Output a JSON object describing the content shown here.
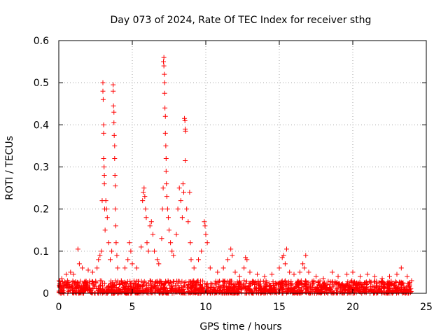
{
  "chart_data": {
    "type": "scatter",
    "title": "Day 073 of 2024, Rate Of TEC Index for receiver sthg",
    "xlabel": "GPS time / hours",
    "ylabel": "ROTI / TECUs",
    "xlim": [
      0,
      25
    ],
    "ylim": [
      0,
      0.6
    ],
    "xticks": [
      0,
      5,
      10,
      15,
      20,
      25
    ],
    "yticks": [
      0,
      0.1,
      0.2,
      0.3,
      0.4,
      0.5,
      0.6
    ],
    "ytick_labels": [
      "0",
      "0.1",
      "0.2",
      "0.3",
      "0.4",
      "0.5",
      "0.6"
    ],
    "grid": true,
    "marker": "+",
    "color": "#ff0000",
    "x_data_range": [
      0,
      24
    ],
    "baseline_level": [
      0.0,
      0.03
    ],
    "series": [
      {
        "name": "ROTI",
        "points": [
          [
            0.2,
            0.035
          ],
          [
            0.5,
            0.045
          ],
          [
            0.8,
            0.05
          ],
          [
            1.0,
            0.045
          ],
          [
            1.3,
            0.105
          ],
          [
            1.4,
            0.07
          ],
          [
            1.6,
            0.06
          ],
          [
            2.0,
            0.055
          ],
          [
            2.3,
            0.05
          ],
          [
            2.6,
            0.06
          ],
          [
            2.7,
            0.08
          ],
          [
            2.8,
            0.09
          ],
          [
            2.9,
            0.1
          ],
          [
            2.95,
            0.22
          ],
          [
            3.0,
            0.5
          ],
          [
            3.0,
            0.48
          ],
          [
            3.02,
            0.46
          ],
          [
            3.05,
            0.4
          ],
          [
            3.05,
            0.38
          ],
          [
            3.05,
            0.32
          ],
          [
            3.08,
            0.3
          ],
          [
            3.1,
            0.28
          ],
          [
            3.1,
            0.26
          ],
          [
            3.12,
            0.2
          ],
          [
            3.15,
            0.15
          ],
          [
            3.2,
            0.22
          ],
          [
            3.25,
            0.2
          ],
          [
            3.3,
            0.18
          ],
          [
            3.4,
            0.12
          ],
          [
            3.5,
            0.08
          ],
          [
            3.6,
            0.1
          ],
          [
            3.7,
            0.495
          ],
          [
            3.7,
            0.48
          ],
          [
            3.72,
            0.445
          ],
          [
            3.75,
            0.43
          ],
          [
            3.75,
            0.405
          ],
          [
            3.77,
            0.375
          ],
          [
            3.8,
            0.35
          ],
          [
            3.8,
            0.32
          ],
          [
            3.82,
            0.28
          ],
          [
            3.85,
            0.255
          ],
          [
            3.85,
            0.2
          ],
          [
            3.88,
            0.16
          ],
          [
            3.9,
            0.12
          ],
          [
            3.95,
            0.09
          ],
          [
            4.0,
            0.06
          ],
          [
            4.5,
            0.06
          ],
          [
            4.7,
            0.08
          ],
          [
            4.8,
            0.12
          ],
          [
            4.9,
            0.1
          ],
          [
            5.0,
            0.07
          ],
          [
            5.3,
            0.06
          ],
          [
            5.6,
            0.11
          ],
          [
            5.7,
            0.22
          ],
          [
            5.75,
            0.24
          ],
          [
            5.8,
            0.25
          ],
          [
            5.85,
            0.23
          ],
          [
            5.9,
            0.2
          ],
          [
            5.95,
            0.18
          ],
          [
            6.0,
            0.12
          ],
          [
            6.1,
            0.1
          ],
          [
            6.2,
            0.16
          ],
          [
            6.3,
            0.17
          ],
          [
            6.4,
            0.14
          ],
          [
            6.5,
            0.1
          ],
          [
            6.7,
            0.08
          ],
          [
            6.8,
            0.07
          ],
          [
            7.0,
            0.13
          ],
          [
            7.05,
            0.2
          ],
          [
            7.1,
            0.25
          ],
          [
            7.12,
            0.55
          ],
          [
            7.15,
            0.56
          ],
          [
            7.15,
            0.54
          ],
          [
            7.18,
            0.52
          ],
          [
            7.2,
            0.5
          ],
          [
            7.2,
            0.475
          ],
          [
            7.22,
            0.44
          ],
          [
            7.25,
            0.42
          ],
          [
            7.25,
            0.38
          ],
          [
            7.28,
            0.35
          ],
          [
            7.3,
            0.32
          ],
          [
            7.3,
            0.29
          ],
          [
            7.32,
            0.26
          ],
          [
            7.35,
            0.23
          ],
          [
            7.4,
            0.2
          ],
          [
            7.45,
            0.18
          ],
          [
            7.5,
            0.15
          ],
          [
            7.6,
            0.12
          ],
          [
            7.7,
            0.1
          ],
          [
            7.8,
            0.09
          ],
          [
            8.0,
            0.14
          ],
          [
            8.1,
            0.2
          ],
          [
            8.2,
            0.25
          ],
          [
            8.3,
            0.22
          ],
          [
            8.4,
            0.18
          ],
          [
            8.45,
            0.26
          ],
          [
            8.5,
            0.24
          ],
          [
            8.55,
            0.415
          ],
          [
            8.58,
            0.41
          ],
          [
            8.6,
            0.39
          ],
          [
            8.62,
            0.385
          ],
          [
            8.6,
            0.315
          ],
          [
            8.7,
            0.2
          ],
          [
            8.8,
            0.17
          ],
          [
            8.9,
            0.24
          ],
          [
            8.95,
            0.12
          ],
          [
            9.0,
            0.08
          ],
          [
            9.2,
            0.06
          ],
          [
            9.5,
            0.08
          ],
          [
            9.7,
            0.1
          ],
          [
            9.9,
            0.17
          ],
          [
            9.95,
            0.16
          ],
          [
            10.0,
            0.14
          ],
          [
            10.1,
            0.12
          ],
          [
            10.3,
            0.06
          ],
          [
            10.8,
            0.05
          ],
          [
            11.2,
            0.06
          ],
          [
            11.5,
            0.08
          ],
          [
            11.7,
            0.105
          ],
          [
            11.8,
            0.09
          ],
          [
            12.0,
            0.05
          ],
          [
            12.3,
            0.04
          ],
          [
            12.6,
            0.06
          ],
          [
            12.7,
            0.085
          ],
          [
            12.8,
            0.08
          ],
          [
            13.0,
            0.05
          ],
          [
            13.5,
            0.045
          ],
          [
            14.0,
            0.04
          ],
          [
            14.5,
            0.045
          ],
          [
            15.0,
            0.06
          ],
          [
            15.2,
            0.085
          ],
          [
            15.3,
            0.09
          ],
          [
            15.4,
            0.07
          ],
          [
            15.5,
            0.105
          ],
          [
            15.7,
            0.05
          ],
          [
            16.0,
            0.045
          ],
          [
            16.4,
            0.05
          ],
          [
            16.6,
            0.07
          ],
          [
            16.7,
            0.06
          ],
          [
            16.8,
            0.09
          ],
          [
            17.0,
            0.05
          ],
          [
            17.5,
            0.04
          ],
          [
            18.0,
            0.035
          ],
          [
            18.6,
            0.05
          ],
          [
            19.0,
            0.04
          ],
          [
            19.6,
            0.045
          ],
          [
            20.0,
            0.05
          ],
          [
            20.5,
            0.04
          ],
          [
            21.0,
            0.045
          ],
          [
            21.5,
            0.04
          ],
          [
            22.0,
            0.035
          ],
          [
            22.5,
            0.04
          ],
          [
            23.0,
            0.045
          ],
          [
            23.3,
            0.06
          ],
          [
            23.7,
            0.04
          ],
          [
            24.0,
            0.03
          ]
        ]
      }
    ]
  }
}
